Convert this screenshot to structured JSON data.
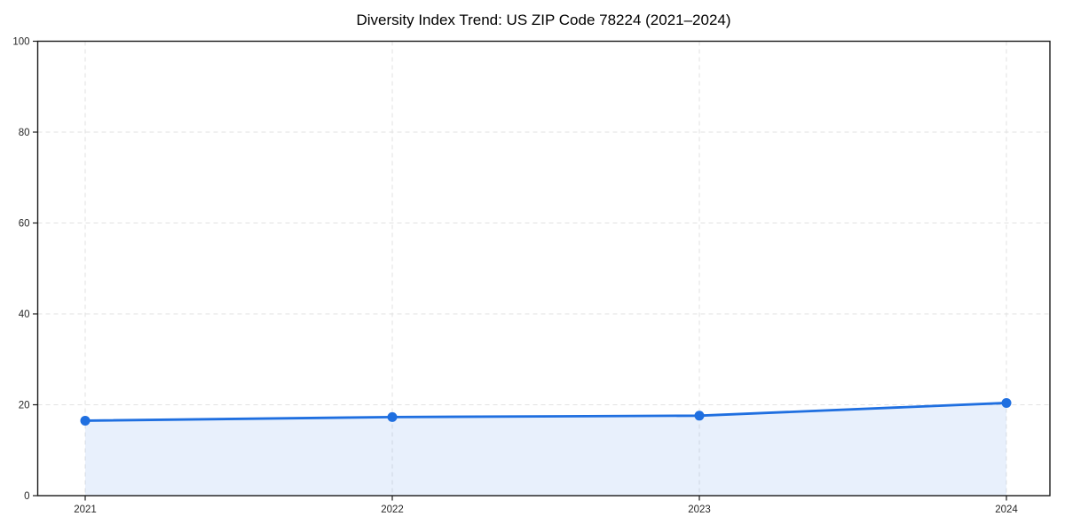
{
  "chart_data": {
    "type": "line",
    "x": [
      "2021",
      "2022",
      "2023",
      "2024"
    ],
    "series": [
      {
        "name": "Diversity Index",
        "values": [
          16.5,
          17.3,
          17.6,
          20.4
        ]
      }
    ],
    "title": "Diversity Index Trend: US ZIP Code 78224 (2021–2024)",
    "xlabel": "",
    "ylabel": "",
    "ylim": [
      0,
      100
    ],
    "yticks": [
      0,
      20,
      40,
      60,
      80,
      100
    ],
    "grid": "dashed, horizontal and vertical",
    "legend": "none",
    "area_fill_to_zero": true,
    "style": {
      "line_color": "#1f6fe0",
      "marker_color": "#1f6fe0",
      "area_fill": "rgba(31,111,224,0.10)",
      "grid_color": "#e2e2e2",
      "axis_color": "#1a1a1a",
      "tick_label_color": "#262626",
      "background": "#ffffff"
    }
  }
}
